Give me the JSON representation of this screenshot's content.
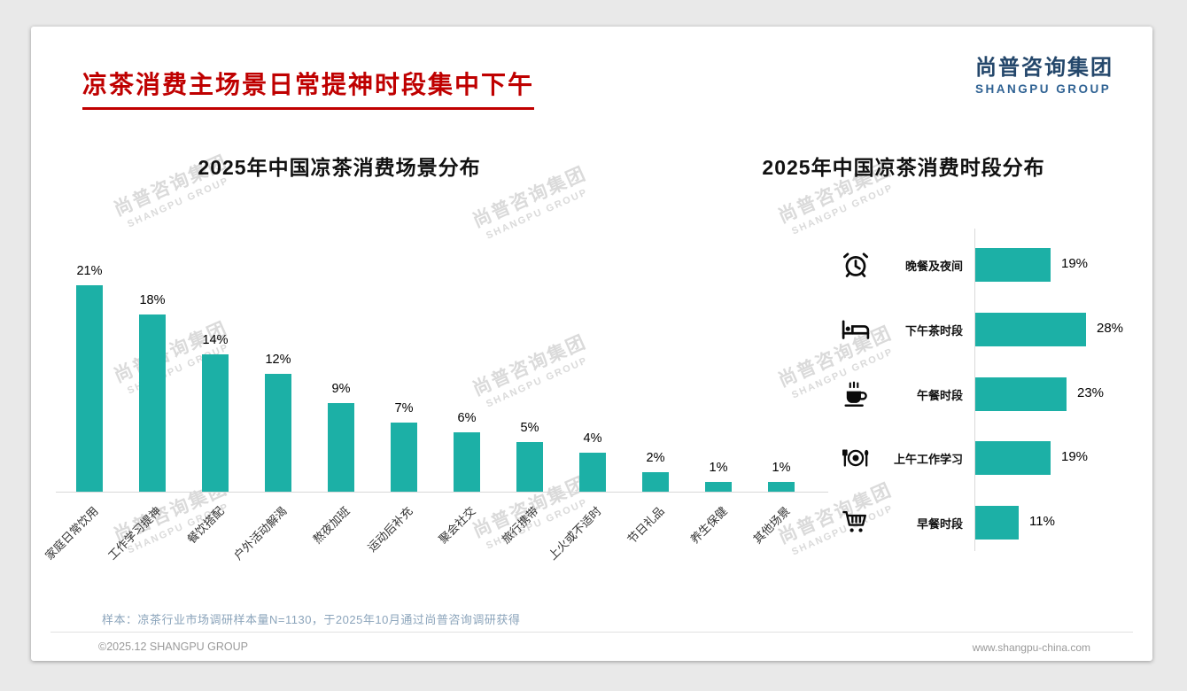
{
  "header": {
    "title": "凉茶消费主场景日常提神时段集中下午",
    "logo": {
      "cn": "尚普咨询集团",
      "en": "SHANGPU GROUP"
    }
  },
  "watermark": {
    "line1": "尚普咨询集团",
    "line2": "SHANGPU GROUP"
  },
  "footnote": "样本：凉茶行业市场调研样本量N=1130，于2025年10月通过尚普咨询调研获得",
  "footer": {
    "left": "©2025.12 SHANGPU GROUP",
    "right": "www.shangpu-china.com"
  },
  "colors": {
    "bar_teal": "#1cb0a6",
    "title_red": "#bf0000",
    "logo_navy": "#24476b",
    "logo_blue": "#2f6293",
    "axis_gray": "#d9d9d9",
    "footnote_blue": "#8ba4bb"
  },
  "chart_data": [
    {
      "type": "bar",
      "orientation": "vertical",
      "title": "2025年中国凉茶消费场景分布",
      "categories": [
        "家庭日常饮用",
        "工作学习提神",
        "餐饮搭配",
        "户外活动解渴",
        "熬夜加班",
        "运动后补充",
        "聚会社交",
        "旅行携带",
        "上火或不适时",
        "节日礼品",
        "养生保健",
        "其他场景"
      ],
      "values": [
        21,
        18,
        14,
        12,
        9,
        7,
        6,
        5,
        4,
        2,
        1,
        1
      ],
      "unit": "%",
      "xlabel": "",
      "ylabel": "",
      "ylim": [
        0,
        22
      ],
      "grid": false,
      "legend": "none",
      "data_labels": true
    },
    {
      "type": "bar",
      "orientation": "horizontal",
      "title": "2025年中国凉茶消费时段分布",
      "categories": [
        "晚餐及夜间",
        "下午茶时段",
        "午餐时段",
        "上午工作学习",
        "早餐时段"
      ],
      "values": [
        19,
        28,
        23,
        19,
        11
      ],
      "icons": [
        "alarm-clock-icon",
        "bed-icon",
        "hot-cup-icon",
        "dining-plate-icon",
        "shopping-cart-icon"
      ],
      "unit": "%",
      "xlabel": "",
      "ylabel": "",
      "xlim": [
        0,
        30
      ],
      "grid": false,
      "legend": "none",
      "data_labels": true
    }
  ]
}
